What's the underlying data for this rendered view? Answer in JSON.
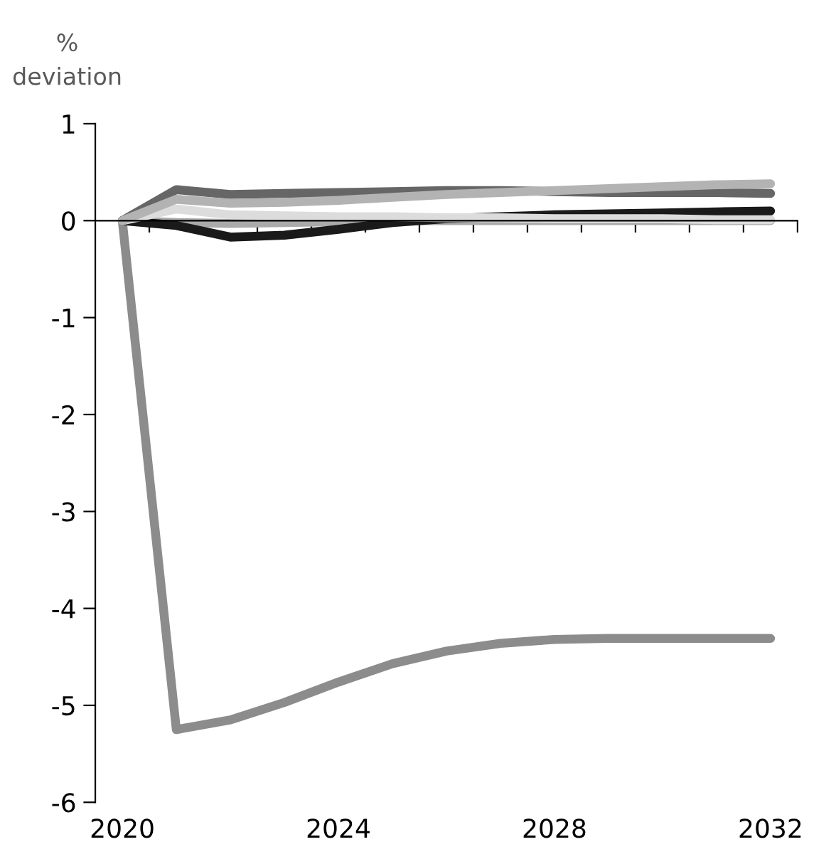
{
  "chart_data": {
    "type": "line",
    "ylabel": "%\ndeviation",
    "x": [
      2020,
      2021,
      2022,
      2023,
      2024,
      2025,
      2026,
      2027,
      2028,
      2029,
      2030,
      2031,
      2032
    ],
    "series": [
      {
        "color": "#8c8c8c",
        "values": [
          0,
          -5.25,
          -5.15,
          -4.97,
          -4.76,
          -4.57,
          -4.44,
          -4.36,
          -4.32,
          -4.31,
          -4.31,
          -4.31,
          -4.31
        ]
      },
      {
        "color": "#aaaaaa",
        "values": [
          0,
          -0.02,
          -0.03,
          -0.02,
          -0.01,
          0,
          0,
          0,
          0,
          0,
          0,
          0,
          0
        ]
      },
      {
        "color": "#1a1a1a",
        "values": [
          0,
          -0.05,
          -0.17,
          -0.15,
          -0.09,
          -0.02,
          0.02,
          0.04,
          0.06,
          0.07,
          0.08,
          0.09,
          0.1
        ]
      },
      {
        "color": "#dcdcdc",
        "values": [
          0,
          0.12,
          0.06,
          0.05,
          0.04,
          0.04,
          0.03,
          0.03,
          0.02,
          0.02,
          0.02,
          0.01,
          0.01
        ]
      },
      {
        "color": "#666666",
        "values": [
          0,
          0.32,
          0.27,
          0.28,
          0.29,
          0.3,
          0.31,
          0.31,
          0.3,
          0.29,
          0.29,
          0.29,
          0.28
        ]
      },
      {
        "color": "#b3b3b3",
        "values": [
          0,
          0.22,
          0.18,
          0.19,
          0.21,
          0.24,
          0.27,
          0.29,
          0.31,
          0.33,
          0.35,
          0.37,
          0.38
        ]
      }
    ],
    "xlim": [
      2019.5,
      2032.5
    ],
    "ylim": [
      -6,
      1
    ],
    "yticks": [
      {
        "value": 1,
        "label": "1"
      },
      {
        "value": 0,
        "label": "0"
      },
      {
        "value": -1,
        "label": "-1"
      },
      {
        "value": -2,
        "label": "-2"
      },
      {
        "value": -3,
        "label": "-3"
      },
      {
        "value": -4,
        "label": "-4"
      },
      {
        "value": -5,
        "label": "-5"
      },
      {
        "value": -6,
        "label": "-6"
      }
    ],
    "xticks": [
      2020,
      2024,
      2028,
      2032,
      {
        "value": 2020.5,
        "label": null
      },
      {
        "value": 2021.5,
        "label": null
      },
      {
        "value": 2022.5,
        "label": null
      },
      {
        "value": 2023.5,
        "label": null
      },
      {
        "value": 2024.5,
        "label": null
      },
      {
        "value": 2025.5,
        "label": null
      },
      {
        "value": 2026.5,
        "label": null
      },
      {
        "value": 2027.5,
        "label": null
      },
      {
        "value": 2028.5,
        "label": null
      },
      {
        "value": 2029.5,
        "label": null
      },
      {
        "value": 2030.5,
        "label": null
      },
      {
        "value": 2031.5,
        "label": null
      },
      {
        "value": 2032.5,
        "label": null
      }
    ],
    "legend": false,
    "marker": "none",
    "line_style": "solid"
  }
}
